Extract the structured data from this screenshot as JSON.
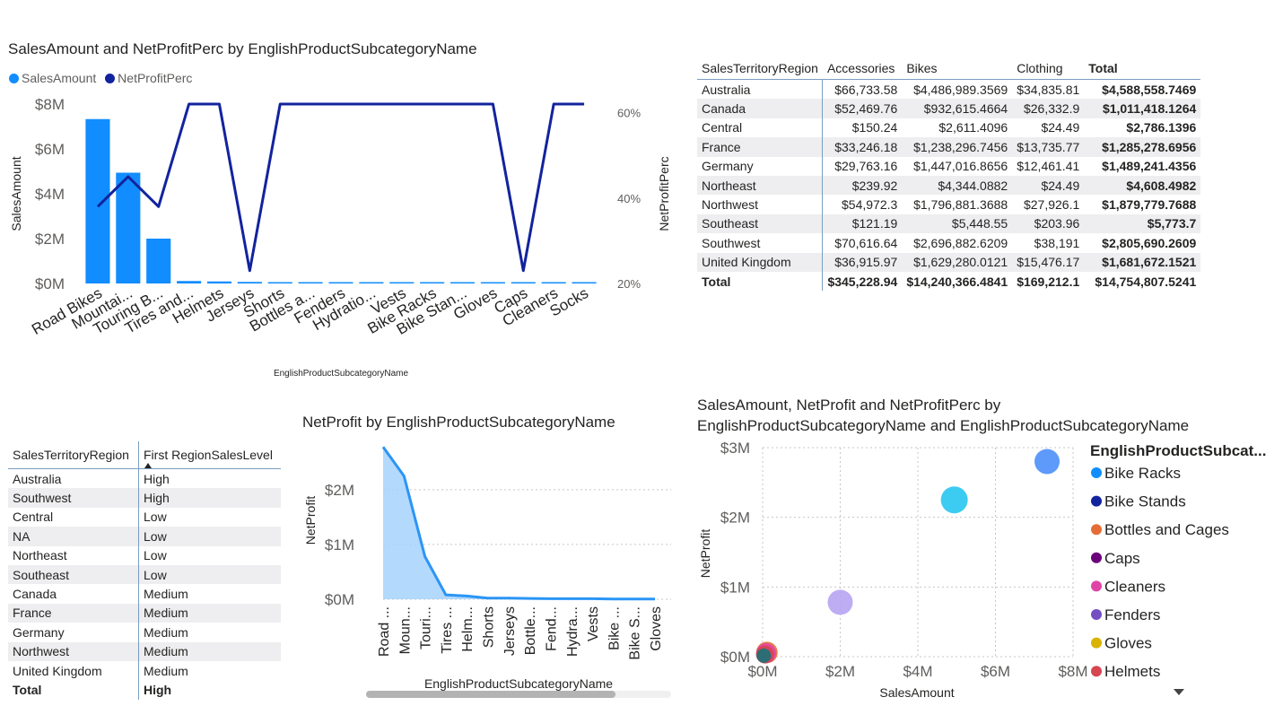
{
  "colors": {
    "sales_bar": "#118dff",
    "profit_line": "#12239e",
    "area_line": "#2b95f5",
    "area_fill": "#a6d2fb",
    "text": "#252423",
    "axis_text": "#605e5c"
  },
  "chart_data": [
    {
      "type": "bar",
      "title": "SalesAmount and NetProfitPerc by EnglishProductSubcategoryName",
      "xlabel": "EnglishProductSubcategoryName",
      "ylabel": "SalesAmount",
      "y2label": "NetProfitPerc",
      "legend": [
        "SalesAmount",
        "NetProfitPerc"
      ],
      "y_ticks": [
        "$0M",
        "$2M",
        "$4M",
        "$6M",
        "$8M"
      ],
      "y2_ticks": [
        "20%",
        "40%",
        "60%"
      ],
      "ylim": [
        0,
        8000000
      ],
      "y2lim": [
        20,
        62
      ],
      "categories": [
        "Road Bikes",
        "Mountai...",
        "Touring B...",
        "Tires and...",
        "Helmets",
        "Jerseys",
        "Shorts",
        "Bottles a...",
        "Fenders",
        "Hydratio...",
        "Vests",
        "Bike Racks",
        "Bike Stan...",
        "Gloves",
        "Caps",
        "Cleaners",
        "Socks"
      ],
      "series": [
        {
          "name": "SalesAmount",
          "type": "bar",
          "values": [
            7330000,
            4940000,
            2000000,
            110000,
            90000,
            70000,
            10000,
            60000,
            50000,
            40000,
            40000,
            40000,
            40000,
            40000,
            20000,
            10000,
            10000
          ]
        },
        {
          "name": "NetProfitPerc",
          "type": "line",
          "values": [
            38,
            45,
            38,
            62,
            62,
            23,
            62,
            62,
            62,
            62,
            62,
            62,
            62,
            62,
            23,
            62,
            62
          ]
        }
      ]
    },
    {
      "type": "area",
      "title": "NetProfit by EnglishProductSubcategoryName",
      "xlabel": "EnglishProductSubcategoryName",
      "ylabel": "NetProfit",
      "y_ticks": [
        "$0M",
        "$1M",
        "$2M"
      ],
      "ylim": [
        0,
        2800000
      ],
      "categories": [
        "Road ...",
        "Moun...",
        "Touri...",
        "Tires ...",
        "Helm...",
        "Shorts",
        "Jerseys",
        "Bottle...",
        "Fend...",
        "Hydra...",
        "Vests",
        "Bike ...",
        "Bike S...",
        "Gloves"
      ],
      "values": [
        2780000,
        2250000,
        780000,
        80000,
        60000,
        20000,
        20000,
        15000,
        10000,
        10000,
        10000,
        5000,
        5000,
        5000
      ]
    },
    {
      "type": "scatter",
      "title": "SalesAmount, NetProfit and NetProfitPerc by EnglishProductSubcategoryName and EnglishProductSubcategoryName",
      "title_line1": "SalesAmount, NetProfit and NetProfitPerc by",
      "title_line2": "EnglishProductSubcategoryName and EnglishProductSubcategoryName",
      "xlabel": "SalesAmount",
      "ylabel": "NetProfit",
      "x_ticks": [
        "$0M",
        "$2M",
        "$4M",
        "$6M",
        "$8M"
      ],
      "y_ticks": [
        "$0M",
        "$1M",
        "$2M",
        "$3M"
      ],
      "xlim": [
        0,
        8000000
      ],
      "ylim": [
        0,
        3000000
      ],
      "legend_title": "EnglishProductSubcat...",
      "legend": [
        {
          "name": "Bike Racks",
          "color": "#118dff"
        },
        {
          "name": "Bike Stands",
          "color": "#12239e"
        },
        {
          "name": "Bottles and Cages",
          "color": "#e66c37"
        },
        {
          "name": "Caps",
          "color": "#6b007b"
        },
        {
          "name": "Cleaners",
          "color": "#e044a7"
        },
        {
          "name": "Fenders",
          "color": "#744ec2"
        },
        {
          "name": "Gloves",
          "color": "#d9b300"
        },
        {
          "name": "Helmets",
          "color": "#d64550"
        }
      ],
      "points": [
        {
          "x": 7330000,
          "y": 2800000,
          "color": "#4c8ff8"
        },
        {
          "x": 4940000,
          "y": 2250000,
          "color": "#28c6f0"
        },
        {
          "x": 2000000,
          "y": 780000,
          "color": "#b7a4f2"
        },
        {
          "x": 110000,
          "y": 60000,
          "color": "#e66c37"
        },
        {
          "x": 90000,
          "y": 50000,
          "color": "#e044a7"
        },
        {
          "x": 60000,
          "y": 30000,
          "color": "#d64550"
        },
        {
          "x": 30000,
          "y": 15000,
          "color": "#197278"
        }
      ]
    },
    {
      "type": "table",
      "columns": [
        "SalesTerritoryRegion",
        "Accessories",
        "Bikes",
        "Clothing",
        "Total"
      ],
      "rows": [
        [
          "Australia",
          "$66,733.58",
          "$4,486,989.3569",
          "$34,835.81",
          "$4,588,558.7469"
        ],
        [
          "Canada",
          "$52,469.76",
          "$932,615.4664",
          "$26,332.9",
          "$1,011,418.1264"
        ],
        [
          "Central",
          "$150.24",
          "$2,611.4096",
          "$24.49",
          "$2,786.1396"
        ],
        [
          "France",
          "$33,246.18",
          "$1,238,296.7456",
          "$13,735.77",
          "$1,285,278.6956"
        ],
        [
          "Germany",
          "$29,763.16",
          "$1,447,016.8656",
          "$12,461.41",
          "$1,489,241.4356"
        ],
        [
          "Northeast",
          "$239.92",
          "$4,344.0882",
          "$24.49",
          "$4,608.4982"
        ],
        [
          "Northwest",
          "$54,972.3",
          "$1,796,881.3688",
          "$27,926.1",
          "$1,879,779.7688"
        ],
        [
          "Southeast",
          "$121.19",
          "$5,448.55",
          "$203.96",
          "$5,773.7"
        ],
        [
          "Southwest",
          "$70,616.64",
          "$2,696,882.6209",
          "$38,191",
          "$2,805,690.2609"
        ],
        [
          "United Kingdom",
          "$36,915.97",
          "$1,629,280.0121",
          "$15,476.17",
          "$1,681,672.1521"
        ]
      ],
      "total": [
        "Total",
        "$345,228.94",
        "$14,240,366.4841",
        "$169,212.1",
        "$14,754,807.5241"
      ]
    },
    {
      "type": "table",
      "columns": [
        "SalesTerritoryRegion",
        "First RegionSalesLevel"
      ],
      "rows": [
        [
          "Australia",
          "High"
        ],
        [
          "Southwest",
          "High"
        ],
        [
          "Central",
          "Low"
        ],
        [
          "NA",
          "Low"
        ],
        [
          "Northeast",
          "Low"
        ],
        [
          "Southeast",
          "Low"
        ],
        [
          "Canada",
          "Medium"
        ],
        [
          "France",
          "Medium"
        ],
        [
          "Germany",
          "Medium"
        ],
        [
          "Northwest",
          "Medium"
        ],
        [
          "United Kingdom",
          "Medium"
        ]
      ],
      "total": [
        "Total",
        "High"
      ]
    }
  ]
}
